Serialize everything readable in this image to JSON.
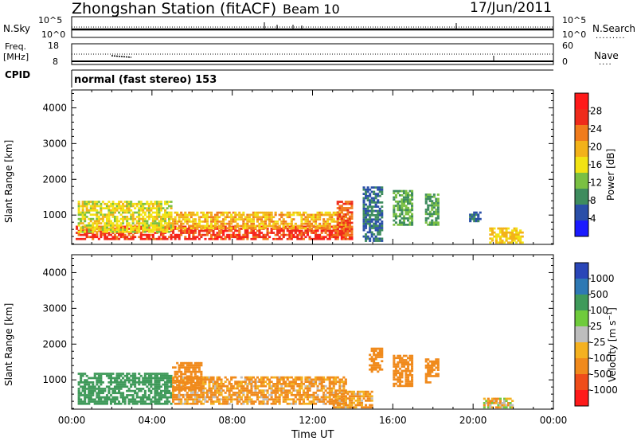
{
  "header": {
    "title": "Zhongshan Station (fitACF)",
    "beam": "Beam 10",
    "date": "17/Jun/2011"
  },
  "strips": {
    "nsky_label": "N.Sky",
    "nsearch_label": "N.Search",
    "noise_ticks": [
      "10^5",
      "10^0"
    ],
    "freq_label_1": "Freq.",
    "freq_label_2": "[MHz]",
    "freq_ticks": [
      "18",
      "8"
    ],
    "nave_label": "Nave",
    "nave_ticks": [
      "60",
      "0"
    ],
    "cpid_label": "CPID",
    "mode_text": "normal (fast stereo) 153"
  },
  "colors": {
    "power_scale": [
      "#1a1aff",
      "#2a4fa8",
      "#3e8c5e",
      "#7ac043",
      "#f2e313",
      "#f3b219",
      "#f07c1c",
      "#ef2b1b",
      "#ff1a1a"
    ],
    "velocity_scale": [
      "#2a46b8",
      "#2e79b4",
      "#3f9a5a",
      "#6fcb3c",
      "#bdbdbd",
      "#f4b120",
      "#f08a1c",
      "#ef4d1a",
      "#ff1a1a"
    ]
  },
  "chart_data": [
    {
      "type": "heatmap",
      "name": "power",
      "title": "",
      "xlabel": "",
      "ylabel": "Slant Range [km]",
      "colorbar_label": "Power [dB]",
      "colorbar_ticks": [
        "28",
        "24",
        "20",
        "16",
        "12",
        "8",
        "4"
      ],
      "colorbar_range": [
        0,
        32
      ],
      "xlim": [
        "00:00",
        "24:00"
      ],
      "ylim": [
        180,
        4500
      ],
      "y_ticks": [
        1000,
        2000,
        3000,
        4000
      ],
      "regions": [
        {
          "x0": 0.2,
          "x1": 14.0,
          "y0": 300,
          "y1": 700,
          "value": 30
        },
        {
          "x0": 0.3,
          "x1": 5.0,
          "y0": 500,
          "y1": 1400,
          "value": 18
        },
        {
          "x0": 5.0,
          "x1": 13.7,
          "y0": 600,
          "y1": 1100,
          "value": 22
        },
        {
          "x0": 13.2,
          "x1": 14.0,
          "y0": 400,
          "y1": 1400,
          "value": 28
        },
        {
          "x0": 14.5,
          "x1": 15.5,
          "y0": 250,
          "y1": 1800,
          "value": 8
        },
        {
          "x0": 16.0,
          "x1": 17.0,
          "y0": 700,
          "y1": 1700,
          "value": 12
        },
        {
          "x0": 17.6,
          "x1": 18.3,
          "y0": 700,
          "y1": 1600,
          "value": 12
        },
        {
          "x0": 19.8,
          "x1": 20.4,
          "y0": 800,
          "y1": 1100,
          "value": 8
        },
        {
          "x0": 20.8,
          "x1": 22.5,
          "y0": 200,
          "y1": 650,
          "value": 20
        }
      ]
    },
    {
      "type": "heatmap",
      "name": "velocity",
      "title": "",
      "xlabel": "Time UT",
      "ylabel": "Slant Range [km]",
      "colorbar_label": "Velocity [m s^-1]",
      "colorbar_ticks": [
        "1000",
        "500",
        "100",
        "25",
        "-25",
        "-100",
        "-500",
        "-1000"
      ],
      "xlim": [
        "00:00",
        "24:00"
      ],
      "x_ticks": [
        "00:00",
        "04:00",
        "08:00",
        "12:00",
        "16:00",
        "20:00",
        "00:00"
      ],
      "ylim": [
        180,
        4500
      ],
      "y_ticks": [
        1000,
        2000,
        3000,
        4000
      ],
      "regions": [
        {
          "x0": 0.3,
          "x1": 5.0,
          "y0": 300,
          "y1": 1200,
          "value": 300
        },
        {
          "x0": 5.0,
          "x1": 13.7,
          "y0": 300,
          "y1": 1100,
          "value": -150
        },
        {
          "x0": 5.0,
          "x1": 6.5,
          "y0": 700,
          "y1": 1500,
          "value": -300
        },
        {
          "x0": 13.0,
          "x1": 15.0,
          "y0": 200,
          "y1": 700,
          "value": -150
        },
        {
          "x0": 14.8,
          "x1": 15.5,
          "y0": 1200,
          "y1": 1900,
          "value": -300
        },
        {
          "x0": 16.0,
          "x1": 17.0,
          "y0": 800,
          "y1": 1700,
          "value": -300
        },
        {
          "x0": 17.6,
          "x1": 18.3,
          "y0": 900,
          "y1": 1600,
          "value": -300
        },
        {
          "x0": 20.5,
          "x1": 22.0,
          "y0": 200,
          "y1": 500,
          "value": -50
        }
      ]
    }
  ]
}
